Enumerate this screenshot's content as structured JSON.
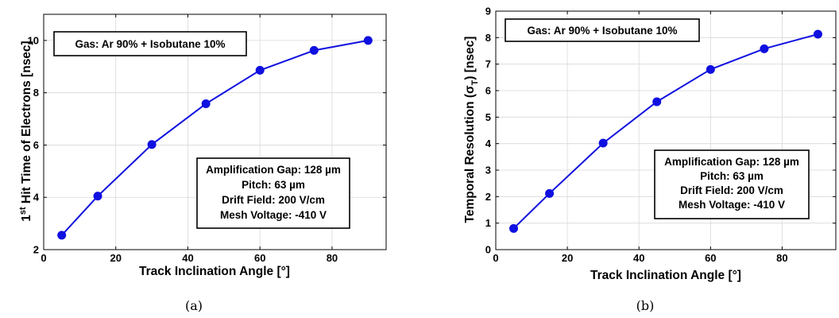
{
  "chart_data": [
    {
      "type": "line",
      "caption": "(a)",
      "xlabel": "Track Inclination Angle [°]",
      "ylabel_sup": "st",
      "ylabel_pre": "1",
      "ylabel_post": " Hit Time of Electrons [nsec]",
      "xlim": [
        0,
        95
      ],
      "ylim": [
        2,
        11
      ],
      "xticks": [
        "0",
        "20",
        "40",
        "60",
        "80"
      ],
      "xtick_values": [
        0,
        20,
        40,
        60,
        80
      ],
      "yticks": [
        "2",
        "4",
        "6",
        "8",
        "10"
      ],
      "ytick_values": [
        2,
        4,
        6,
        8,
        10
      ],
      "grid": true,
      "line_color": "#1010e0",
      "x": [
        5,
        15,
        30,
        45,
        60,
        75,
        90
      ],
      "y": [
        2.55,
        4.05,
        6.02,
        7.58,
        8.86,
        9.62,
        10.0
      ],
      "gas_box": "Gas: Ar 90% + Isobutane 10%",
      "info_box": [
        "Amplification Gap: 128 µm",
        "Pitch: 63 µm",
        "Drift Field: 200 V/cm",
        "Mesh Voltage: -410 V"
      ]
    },
    {
      "type": "line",
      "caption": "(b)",
      "xlabel": "Track Inclination Angle [°]",
      "ylabel_pre": "Temporal Resolution (σ",
      "ylabel_sub": "T",
      "ylabel_post": ") [nsec]",
      "xlim": [
        0,
        95
      ],
      "ylim": [
        0,
        9
      ],
      "xticks": [
        "0",
        "20",
        "40",
        "60",
        "80"
      ],
      "xtick_values": [
        0,
        20,
        40,
        60,
        80
      ],
      "yticks": [
        "0",
        "1",
        "2",
        "3",
        "4",
        "5",
        "6",
        "7",
        "8",
        "9"
      ],
      "ytick_values": [
        0,
        1,
        2,
        3,
        4,
        5,
        6,
        7,
        8,
        9
      ],
      "grid": true,
      "line_color": "#1010e0",
      "x": [
        5,
        15,
        30,
        45,
        60,
        75,
        90
      ],
      "y": [
        0.8,
        2.12,
        4.02,
        5.58,
        6.8,
        7.58,
        8.13
      ],
      "gas_box": "Gas: Ar 90% + Isobutane 10%",
      "info_box": [
        "Amplification Gap: 128 µm",
        "Pitch: 63 µm",
        "Drift Field: 200 V/cm",
        "Mesh Voltage: -410 V"
      ]
    }
  ]
}
